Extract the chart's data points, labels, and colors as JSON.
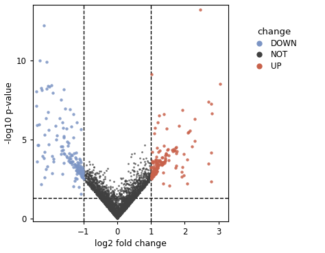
{
  "xlabel": "log2 fold change",
  "ylabel": "-log10 p-value",
  "xlim": [
    -2.5,
    3.3
  ],
  "ylim": [
    -0.15,
    13.5
  ],
  "xticks": [
    -1,
    0,
    1,
    2,
    3
  ],
  "yticks": [
    0,
    5,
    10
  ],
  "vline1": -1,
  "vline2": 1,
  "hline": 1.3,
  "color_down": "#7B94C4",
  "color_not": "#404040",
  "color_up": "#C8614A",
  "legend_title": "change",
  "legend_labels": [
    "DOWN",
    "NOT",
    "UP"
  ],
  "seed": 42,
  "fc_threshold": 1.0,
  "p_threshold": 1.3
}
